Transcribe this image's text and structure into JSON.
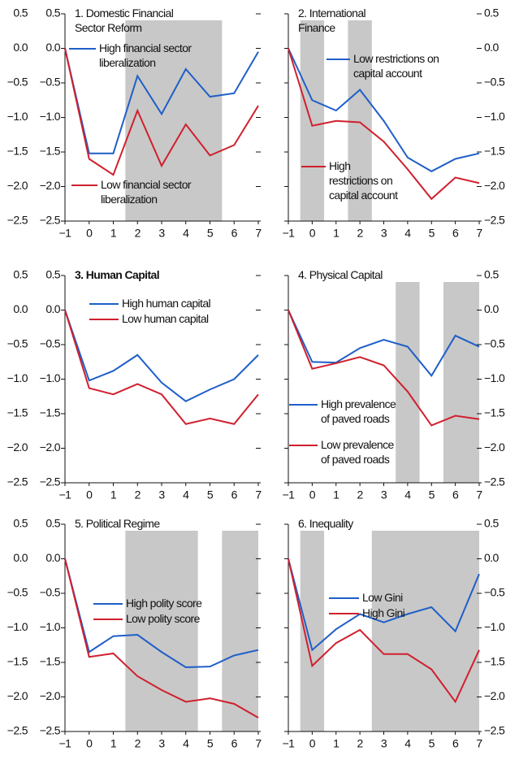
{
  "chart_data": [
    {
      "type": "line",
      "title": "1. Domestic Financial Sector Reform",
      "x": [
        -1,
        0,
        1,
        2,
        3,
        4,
        5,
        6,
        7
      ],
      "xlim": [
        -1,
        7
      ],
      "xticks": [
        {
          "value": -1,
          "label": "−1"
        },
        0,
        1,
        2,
        3,
        4,
        5,
        6,
        7
      ],
      "ylim": [
        -2.5,
        0.5
      ],
      "yticks": [
        {
          "value": -2.5,
          "label": "−2.5"
        },
        {
          "value": -2,
          "label": "−2.0"
        },
        {
          "value": -1.5,
          "label": "−1.5"
        },
        {
          "value": -1,
          "label": "−1.0"
        },
        {
          "value": -0.5,
          "label": "−0.5"
        },
        {
          "value": 0,
          "label": "0.0"
        },
        {
          "value": 0.5,
          "label": "0.5"
        }
      ],
      "shaded_ranges": [
        [
          1.5,
          5.5
        ]
      ],
      "series": [
        {
          "name": "High financial sector liberalization",
          "color": "#1f5fc8",
          "values": [
            0,
            -1.52,
            -1.52,
            -0.4,
            -0.95,
            -0.3,
            -0.7,
            -0.65,
            -0.05
          ]
        },
        {
          "name": "Low financial sector liberalization",
          "color": "#d0202e",
          "values": [
            0,
            -1.6,
            -1.83,
            -0.9,
            -1.7,
            -1.1,
            -1.55,
            -1.4,
            -0.83
          ]
        }
      ]
    },
    {
      "type": "line",
      "title": "2. International Finance",
      "x": [
        -1,
        0,
        1,
        2,
        3,
        4,
        5,
        6,
        7
      ],
      "xlim": [
        -1,
        7
      ],
      "xticks": [
        {
          "value": -1,
          "label": "−1"
        },
        0,
        1,
        2,
        3,
        4,
        5,
        6,
        7
      ],
      "ylim": [
        -2.5,
        0.5
      ],
      "yticks": [
        {
          "value": -2.5,
          "label": "−2.5"
        },
        {
          "value": -2,
          "label": "−2.0"
        },
        {
          "value": -1.5,
          "label": "−1.5"
        },
        {
          "value": -1,
          "label": "−1.0"
        },
        {
          "value": -0.5,
          "label": "−0.5"
        },
        {
          "value": 0,
          "label": "0.0"
        },
        {
          "value": 0.5,
          "label": "0.5"
        }
      ],
      "shaded_ranges": [
        [
          -0.5,
          0.5
        ],
        [
          1.5,
          2.5
        ]
      ],
      "series": [
        {
          "name": "Low restrictions on capital account",
          "color": "#1f5fc8",
          "values": [
            0,
            -0.75,
            -0.9,
            -0.6,
            -1.05,
            -1.58,
            -1.78,
            -1.6,
            -1.52
          ]
        },
        {
          "name": "High restrictions on capital account",
          "color": "#d0202e",
          "values": [
            0,
            -1.12,
            -1.05,
            -1.07,
            -1.35,
            -1.75,
            -2.18,
            -1.87,
            -1.95
          ]
        }
      ]
    },
    {
      "type": "line",
      "title": "3. Human Capital",
      "title_weight": "bold",
      "x": [
        -1,
        0,
        1,
        2,
        3,
        4,
        5,
        6,
        7
      ],
      "xlim": [
        -1,
        7
      ],
      "xticks": [
        {
          "value": -1,
          "label": "−1"
        },
        0,
        1,
        2,
        3,
        4,
        5,
        6,
        7
      ],
      "ylim": [
        -2.5,
        0.5
      ],
      "yticks": [
        {
          "value": -2.5,
          "label": "−2.5"
        },
        {
          "value": -2,
          "label": "−2.0"
        },
        {
          "value": -1.5,
          "label": "−1.5"
        },
        {
          "value": -1,
          "label": "−1.0"
        },
        {
          "value": -0.5,
          "label": "−0.5"
        },
        {
          "value": 0,
          "label": "0.0"
        },
        {
          "value": 0.5,
          "label": "0.5"
        }
      ],
      "shaded_ranges": [],
      "series": [
        {
          "name": "High human capital",
          "color": "#1f5fc8",
          "values": [
            0,
            -1.02,
            -0.88,
            -0.65,
            -1.05,
            -1.32,
            -1.15,
            -1.0,
            -0.65
          ]
        },
        {
          "name": "Low human capital",
          "color": "#d0202e",
          "values": [
            0,
            -1.13,
            -1.22,
            -1.07,
            -1.22,
            -1.65,
            -1.57,
            -1.65,
            -1.22
          ]
        }
      ]
    },
    {
      "type": "line",
      "title": "4. Physical Capital",
      "x": [
        -1,
        0,
        1,
        2,
        3,
        4,
        5,
        6,
        7
      ],
      "xlim": [
        -1,
        7
      ],
      "xticks": [
        {
          "value": -1,
          "label": "−1"
        },
        0,
        1,
        2,
        3,
        4,
        5,
        6,
        7
      ],
      "ylim": [
        -2.5,
        0.5
      ],
      "yticks": [
        {
          "value": -2.5,
          "label": "−2.5"
        },
        {
          "value": -2,
          "label": "−2.0"
        },
        {
          "value": -1.5,
          "label": "−1.5"
        },
        {
          "value": -1,
          "label": "−1.0"
        },
        {
          "value": -0.5,
          "label": "−0.5"
        },
        {
          "value": 0,
          "label": "0.0"
        },
        {
          "value": 0.5,
          "label": "0.5"
        }
      ],
      "shaded_ranges": [
        [
          3.5,
          4.5
        ],
        [
          5.5,
          7
        ]
      ],
      "series": [
        {
          "name": "High prevalence of paved roads",
          "color": "#1f5fc8",
          "values": [
            0,
            -0.75,
            -0.76,
            -0.55,
            -0.43,
            -0.53,
            -0.95,
            -0.37,
            -0.53
          ]
        },
        {
          "name": "Low prevalence of paved roads",
          "color": "#d0202e",
          "values": [
            0,
            -0.85,
            -0.77,
            -0.68,
            -0.8,
            -1.18,
            -1.67,
            -1.53,
            -1.58
          ]
        }
      ]
    },
    {
      "type": "line",
      "title": "5. Political Regime",
      "x": [
        -1,
        0,
        1,
        2,
        3,
        4,
        5,
        6,
        7
      ],
      "xlim": [
        -1,
        7
      ],
      "xticks": [
        {
          "value": -1,
          "label": "−1"
        },
        0,
        1,
        2,
        3,
        4,
        5,
        6,
        7
      ],
      "ylim": [
        -2.5,
        0.5
      ],
      "yticks": [
        {
          "value": -2.5,
          "label": "−2.5"
        },
        {
          "value": -2,
          "label": "−2.0"
        },
        {
          "value": -1.5,
          "label": "−1.5"
        },
        {
          "value": -1,
          "label": "−1.0"
        },
        {
          "value": -0.5,
          "label": "−0.5"
        },
        {
          "value": 0,
          "label": "0.0"
        },
        {
          "value": 0.5,
          "label": "0.5"
        }
      ],
      "shaded_ranges": [
        [
          1.5,
          4.5
        ],
        [
          5.5,
          7
        ]
      ],
      "series": [
        {
          "name": "High polity score",
          "color": "#1f5fc8",
          "values": [
            0,
            -1.35,
            -1.12,
            -1.1,
            -1.35,
            -1.57,
            -1.56,
            -1.4,
            -1.32
          ]
        },
        {
          "name": "Low polity score",
          "color": "#d0202e",
          "values": [
            0,
            -1.42,
            -1.37,
            -1.7,
            -1.9,
            -2.07,
            -2.02,
            -2.1,
            -2.3
          ]
        }
      ]
    },
    {
      "type": "line",
      "title": "6. Inequality",
      "x": [
        -1,
        0,
        1,
        2,
        3,
        4,
        5,
        6,
        7
      ],
      "xlim": [
        -1,
        7
      ],
      "xticks": [
        {
          "value": -1,
          "label": "−1"
        },
        0,
        1,
        2,
        3,
        4,
        5,
        6,
        7
      ],
      "ylim": [
        -2.5,
        0.5
      ],
      "yticks": [
        {
          "value": -2.5,
          "label": "−2.5"
        },
        {
          "value": -2,
          "label": "−2.0"
        },
        {
          "value": -1.5,
          "label": "−1.5"
        },
        {
          "value": -1,
          "label": "−1.0"
        },
        {
          "value": -0.5,
          "label": "−0.5"
        },
        {
          "value": 0,
          "label": "0.0"
        },
        {
          "value": 0.5,
          "label": "0.5"
        }
      ],
      "shaded_ranges": [
        [
          -0.5,
          0.5
        ],
        [
          2.5,
          7
        ]
      ],
      "series": [
        {
          "name": "Low Gini",
          "color": "#1f5fc8",
          "values": [
            0,
            -1.32,
            -1.02,
            -0.8,
            -0.92,
            -0.8,
            -0.7,
            -1.05,
            -0.22
          ]
        },
        {
          "name": "High Gini",
          "color": "#d0202e",
          "values": [
            0,
            -1.55,
            -1.22,
            -1.03,
            -1.38,
            -1.38,
            -1.6,
            -2.07,
            -1.32
          ]
        }
      ]
    }
  ]
}
